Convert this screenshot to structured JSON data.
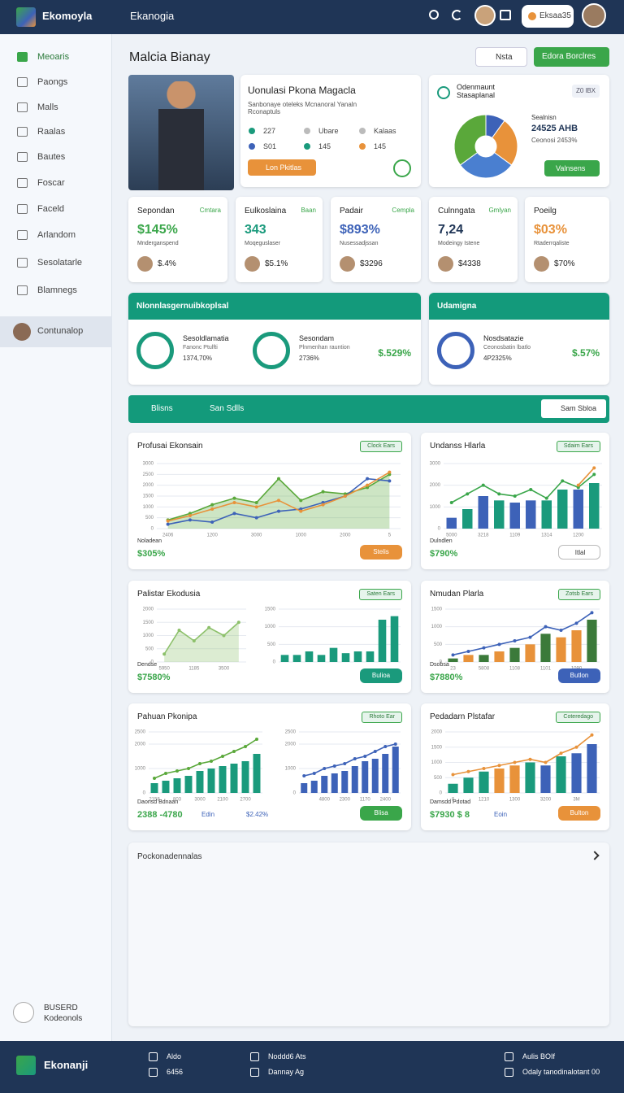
{
  "topbar": {
    "brand": "Ekomoyla",
    "section": "Ekanogia",
    "badge": "Eksaa35"
  },
  "sidebar": {
    "items": [
      "Meoaris",
      "Paongs",
      "Malls",
      "Raalas",
      "Bautes",
      "Foscar",
      "Faceld",
      "Arlandom",
      "Sesolatarle",
      "Blamnegs",
      "Contunalop"
    ],
    "footer": [
      "BUSERD",
      "Kodeonols"
    ]
  },
  "header": {
    "title": "Malcia Bianay",
    "buttons": [
      "Nsta",
      "Edora Borclres"
    ]
  },
  "profile_card": {
    "title": "Uonulasi Pkona Magacla",
    "subtitle": "Sanbonaye oteleks Mcnanoral Yanaln Rconaptuls",
    "stats": [
      "227",
      "Ubare",
      "Kalaas",
      "S01",
      "145",
      "145"
    ],
    "button": "Lon Pkitlas"
  },
  "donut_card": {
    "title": "Odenmaunt Stasaplanal",
    "badge": "Z0 lBX",
    "label": "Sealnisn",
    "value": "24525 AHB",
    "note": "Ceonosi 2453%",
    "button": "Valnsens",
    "chart": {
      "type": "pie",
      "values": [
        10,
        25,
        30,
        35
      ],
      "colors": [
        "#3d62b8",
        "#e8923a",
        "#4a7fd0",
        "#5aa83a"
      ]
    }
  },
  "kpis": [
    {
      "label": "Sepondan",
      "tag": "Cmtara",
      "value": "$145%",
      "sub": "Mnderganspend",
      "foot": "$.4%",
      "color": "#3aa64a"
    },
    {
      "label": "Eulkoslaina",
      "tag": "Baan",
      "value": "343",
      "sub": "Moqeguslaser",
      "foot": "$5.1%",
      "color": "#1a9a7c"
    },
    {
      "label": "Padair",
      "tag": "Cempla",
      "value": "$893%",
      "sub": "Nusessadjssan",
      "foot": "$3296",
      "color": "#3d62b8"
    },
    {
      "label": "Culnngata",
      "tag": "Gmlyan",
      "value": "7,24",
      "sub": "Modeingy Istene",
      "foot": "$4338",
      "color": "#1f3556"
    },
    {
      "label": "Poeilg",
      "value": "$03%",
      "sub": "Rtaderrqaliste",
      "foot": "$70%",
      "color": "#e8923a"
    }
  ],
  "panels": [
    {
      "title": "Nlonnlasgernuibkoplsal",
      "items": [
        {
          "name": "Sesoldlamatia",
          "desc": "Fanonc Ptulfti",
          "value": "1374,70%"
        },
        {
          "name": "Sesondam",
          "desc": "Plnmenhan rauntion",
          "value": "2736%"
        }
      ],
      "total": "$.529%"
    },
    {
      "title": "Udamigna",
      "items": [
        {
          "name": "Nosdsatazie",
          "desc": "Ceonosbatin lbatlo",
          "value": "4P2325%"
        }
      ],
      "total": "$.57%"
    }
  ],
  "strip": {
    "left": "Blisns",
    "mid": "San Sdlls",
    "button": "Sam Sbloa"
  },
  "charts": [
    {
      "title": "Profusai Ekonsain",
      "badge": "Clock Ears",
      "foot_label": "Noladean",
      "foot_value": "$305%",
      "button": "Stelis",
      "button_color": "#e8923a",
      "plots": [
        {
          "type": "area",
          "ylim": [
            0,
            3000
          ],
          "yticks": [
            0,
            500,
            1000,
            1500,
            2000,
            2500,
            3000
          ],
          "categories": [
            "2406",
            null,
            "1200",
            null,
            "3000",
            null,
            "1000",
            null,
            "2000",
            null,
            "5"
          ],
          "series": [
            {
              "type": "area",
              "color": "#5aa83a",
              "values": [
                400,
                700,
                1100,
                1400,
                1200,
                2300,
                1300,
                1700,
                1600,
                1900,
                2500
              ]
            },
            {
              "type": "line",
              "color": "#3d62b8",
              "values": [
                200,
                400,
                300,
                700,
                500,
                800,
                900,
                1200,
                1500,
                2300,
                2200
              ]
            },
            {
              "type": "line",
              "color": "#e8923a",
              "values": [
                350,
                600,
                900,
                1200,
                1000,
                1300,
                800,
                1100,
                1500,
                2000,
                2600
              ]
            }
          ]
        }
      ]
    },
    {
      "title": "Undanss Hlarla",
      "badge": "Sdaim Ears",
      "foot_label": "Dulndlen",
      "foot_value": "$790%",
      "button": "Itlal",
      "button_color": "#ffffff",
      "plots": [
        {
          "type": "bar",
          "ylim": [
            0,
            3000
          ],
          "yticks": [
            0,
            1000,
            2000,
            3000
          ],
          "categories": [
            "5000",
            null,
            "3218",
            null,
            "1109",
            null,
            "1314",
            null,
            "1200",
            null
          ],
          "series": [
            {
              "type": "bar",
              "colors": [
                "#3d62b8",
                "#1a9a7c",
                "#3d62b8",
                "#1a9a7c",
                "#3d62b8",
                "#3d62b8",
                "#1a9a7c",
                "#1a9a7c",
                "#3d62b8",
                "#1a9a7c"
              ],
              "values": [
                500,
                900,
                1500,
                1300,
                1200,
                1300,
                1300,
                1800,
                1800,
                2100
              ]
            },
            {
              "type": "line",
              "color": "#3aa64a",
              "values": [
                1200,
                1600,
                2000,
                1600,
                1500,
                1800,
                1400,
                2200,
                1900,
                2500
              ]
            },
            {
              "type": "line",
              "color": "#e8923a",
              "values": [
                null,
                null,
                null,
                null,
                null,
                null,
                null,
                null,
                2000,
                2800
              ]
            }
          ]
        }
      ]
    },
    {
      "title": "Palistar Ekodusia",
      "badge": "Saten Ears",
      "foot_label": "Dendse",
      "foot_value": "$7580%",
      "button": "Bulioa",
      "button_color": "#1a9a7c",
      "plots": [
        {
          "type": "area",
          "ylim": [
            0,
            2000
          ],
          "yticks": [
            0,
            500,
            1000,
            1500,
            2000
          ],
          "categories": [
            "5950",
            null,
            "1185",
            null,
            "3500",
            null
          ],
          "series": [
            {
              "type": "area",
              "color": "#8cc06a",
              "values": [
                300,
                1200,
                800,
                1300,
                1000,
                1500
              ]
            }
          ]
        },
        {
          "type": "bar",
          "ylim": [
            0,
            1500
          ],
          "yticks": [
            0,
            500,
            1000,
            1500
          ],
          "categories": [
            null,
            null,
            null,
            null,
            null,
            null,
            null,
            null,
            null,
            null
          ],
          "series": [
            {
              "type": "bar",
              "color": "#1a9a7c",
              "values": [
                200,
                200,
                300,
                200,
                400,
                250,
                300,
                300,
                1200,
                1300
              ]
            }
          ]
        }
      ]
    },
    {
      "title": "Nmudan Plarla",
      "badge": "Zotsb Ears",
      "foot_label": "Dsobsa",
      "foot_value": "$7880%",
      "button": "Butlon",
      "button_color": "#3d62b8",
      "plots": [
        {
          "type": "bar",
          "ylim": [
            0,
            1500
          ],
          "yticks": [
            0,
            500,
            1000,
            1500
          ],
          "categories": [
            "23",
            null,
            "5808",
            null,
            "1108",
            null,
            "1101",
            null,
            "1090",
            null
          ],
          "series": [
            {
              "type": "bar",
              "colors": [
                "#3b7a3a",
                "#e8923a",
                "#3b7a3a",
                "#e8923a",
                "#3b7a3a",
                "#e8923a",
                "#3b7a3a",
                "#e8923a",
                "#e8923a",
                "#3b7a3a"
              ],
              "values": [
                100,
                200,
                200,
                300,
                400,
                500,
                800,
                700,
                900,
                1200
              ]
            },
            {
              "type": "line",
              "color": "#3d62b8",
              "values": [
                200,
                300,
                400,
                500,
                600,
                700,
                1000,
                900,
                1100,
                1400
              ]
            }
          ]
        }
      ]
    },
    {
      "title": "Pahuan Pkonipa",
      "badge": "Rhoto Ear",
      "foot_label": "Daonsd Bdnaan",
      "foot_value": "2388 -4780",
      "legend": [
        "Edin",
        "$2.42%"
      ],
      "button": "Blisa",
      "button_color": "#3aa64a",
      "plots": [
        {
          "type": "bar",
          "ylim": [
            0,
            2500
          ],
          "yticks": [
            0,
            1000,
            2000,
            2500
          ],
          "categories": [
            "2158",
            null,
            "803",
            null,
            "3000",
            null,
            "2100",
            null,
            "2700",
            null
          ],
          "series": [
            {
              "type": "bar",
              "color": "#1a9a7c",
              "values": [
                400,
                500,
                600,
                700,
                900,
                1000,
                1100,
                1200,
                1300,
                1600
              ]
            },
            {
              "type": "line",
              "color": "#5aa83a",
              "values": [
                600,
                800,
                900,
                1000,
                1200,
                1300,
                1500,
                1700,
                1900,
                2200
              ]
            }
          ]
        },
        {
          "type": "bar",
          "ylim": [
            0,
            2500
          ],
          "yticks": [
            0,
            1000,
            2000,
            2500
          ],
          "categories": [
            null,
            null,
            "4800",
            null,
            "2300",
            null,
            "1170",
            null,
            "2400",
            null
          ],
          "series": [
            {
              "type": "bar",
              "color": "#3d62b8",
              "values": [
                400,
                500,
                700,
                800,
                900,
                1100,
                1300,
                1400,
                1600,
                1900
              ]
            },
            {
              "type": "line",
              "color": "#3d62b8",
              "values": [
                700,
                800,
                1000,
                1100,
                1200,
                1400,
                1500,
                1700,
                1900,
                2000
              ]
            }
          ]
        }
      ]
    },
    {
      "title": "Pedadarn Plstafar",
      "badge": "Coteredago",
      "foot_label": "Damsdd Pdotad",
      "foot_value": "$7930 $ 8",
      "legend": [
        "Eoin"
      ],
      "button": "Bulton",
      "button_color": "#e8923a",
      "plots": [
        {
          "type": "bar",
          "ylim": [
            0,
            2000
          ],
          "yticks": [
            0,
            500,
            1000,
            1500,
            2000
          ],
          "categories": [
            "8",
            null,
            "1210",
            null,
            "1300",
            null,
            "3200",
            null,
            "3M",
            null
          ],
          "series": [
            {
              "type": "bar",
              "colors": [
                "#1a9a7c",
                "#1a9a7c",
                "#1a9a7c",
                "#e8923a",
                "#e8923a",
                "#1a9a7c",
                "#3d62b8",
                "#1a9a7c",
                "#3d62b8",
                "#3d62b8"
              ],
              "values": [
                300,
                500,
                700,
                800,
                900,
                1000,
                900,
                1200,
                1300,
                1600
              ]
            },
            {
              "type": "line",
              "color": "#e8923a",
              "values": [
                600,
                700,
                800,
                900,
                1000,
                1100,
                1000,
                1300,
                1500,
                1900
              ]
            }
          ]
        }
      ]
    }
  ],
  "empty_card": {
    "title": "Pockonadennalas"
  },
  "footer": {
    "brand": "Ekonanji",
    "col1": [
      "Aldo",
      "6456"
    ],
    "col2": [
      "Noddd6 Ats",
      "Dannay Ag"
    ],
    "col3": [
      "Aulis BOIf",
      "Odaly tanodinalotant 00"
    ]
  }
}
